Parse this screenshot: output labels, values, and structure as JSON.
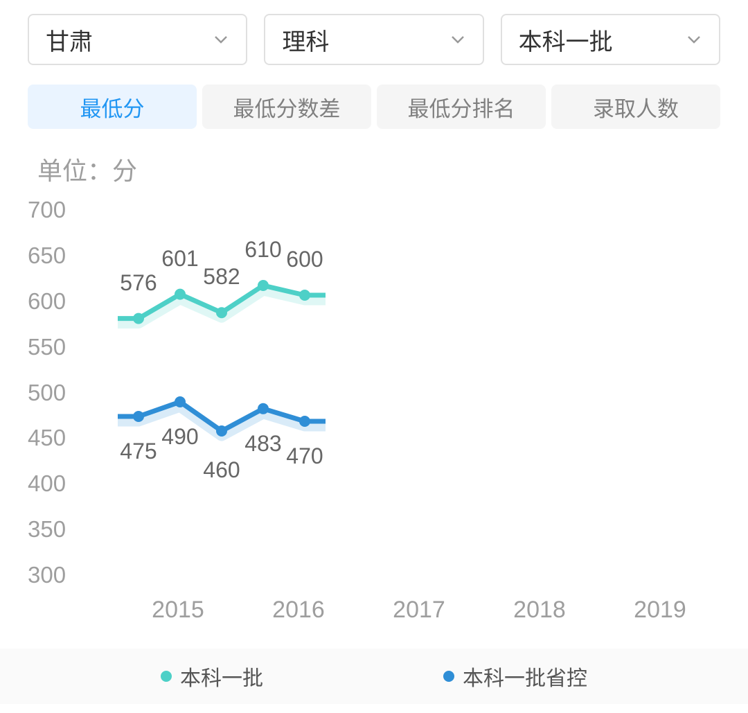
{
  "dropdowns": [
    {
      "label": "甘肃"
    },
    {
      "label": "理科"
    },
    {
      "label": "本科一批"
    }
  ],
  "tabs": [
    {
      "label": "最低分",
      "active": true
    },
    {
      "label": "最低分数差",
      "active": false
    },
    {
      "label": "最低分排名",
      "active": false
    },
    {
      "label": "录取人数",
      "active": false
    }
  ],
  "unit_label": "单位：分",
  "chart": {
    "type": "line",
    "ylim": [
      300,
      700
    ],
    "ytick_step": 50,
    "yticks": [
      700,
      650,
      600,
      550,
      500,
      450,
      400,
      350,
      300
    ],
    "categories": [
      "2015",
      "2016",
      "2017",
      "2018",
      "2019"
    ],
    "series": [
      {
        "name": "本科一批",
        "color": "#4dd0c7",
        "line_width": 7,
        "marker_radius": 8,
        "values": [
          576,
          601,
          582,
          610,
          600
        ],
        "label_offset_y": -38
      },
      {
        "name": "本科一批省控",
        "color": "#2f8ed6",
        "line_width": 7,
        "marker_radius": 8,
        "values": [
          475,
          490,
          460,
          483,
          470
        ],
        "label_offset_y": 32,
        "label_offsets_y": [
          32,
          32,
          38,
          32,
          32
        ]
      }
    ],
    "background_color": "#ffffff",
    "axis_label_color": "#9e9e9e",
    "axis_label_fontsize": 33,
    "data_label_color": "#666666",
    "data_label_fontsize": 32,
    "legend_bg": "#fafafa"
  }
}
